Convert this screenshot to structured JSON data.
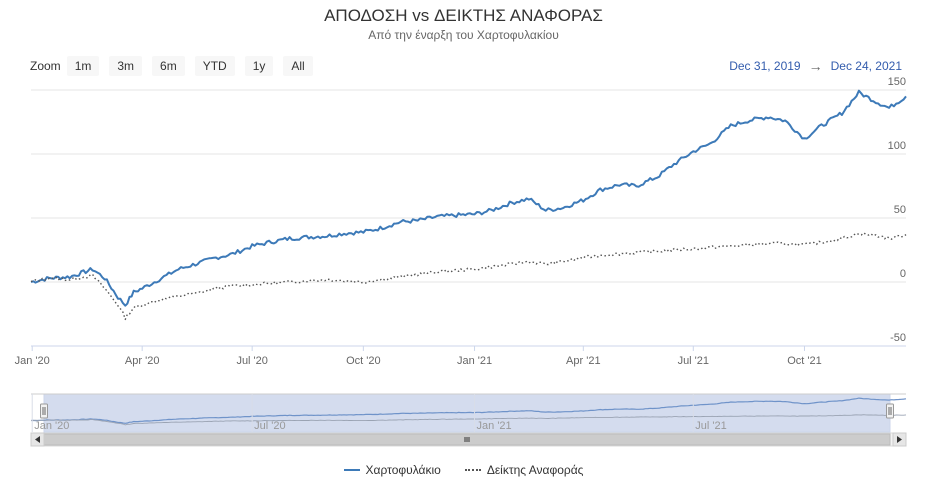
{
  "title": "ΑΠΟΔΟΣΗ vs ΔΕΙΚΤΗΣ ΑΝΑΦΟΡΑΣ",
  "subtitle": "Από την έναρξη του Χαρτοφυλακίου",
  "zoom": {
    "label": "Zoom",
    "buttons": [
      "1m",
      "3m",
      "6m",
      "YTD",
      "1y",
      "All"
    ]
  },
  "range": {
    "from": "Dec 31, 2019",
    "to": "Dec 24, 2021"
  },
  "colors": {
    "portfolio": "#3d7ab8",
    "benchmark": "#555555",
    "navigator_fill": "#ccd6eb",
    "range_text": "#335cad"
  },
  "chart_data": {
    "type": "line",
    "x_range": [
      "2019-12-31",
      "2021-12-24"
    ],
    "x_tick_labels": [
      "Jan '20",
      "Apr '20",
      "Jul '20",
      "Oct '20",
      "Jan '21",
      "Apr '21",
      "Jul '21",
      "Oct '21"
    ],
    "navigator_tick_labels": [
      "Jan '20",
      "Jul '20",
      "Jan '21",
      "Jul '21"
    ],
    "y_ticks": [
      -50,
      0,
      50,
      100,
      150
    ],
    "ylim": [
      -50,
      150
    ],
    "grid": true,
    "legend_position": "bottom",
    "series": [
      {
        "name": "Χαρτοφυλάκιο",
        "line_style": "solid",
        "points": [
          [
            "2019-12-31",
            0
          ],
          [
            "2020-01-15",
            3
          ],
          [
            "2020-02-01",
            4
          ],
          [
            "2020-02-20",
            10
          ],
          [
            "2020-03-01",
            3
          ],
          [
            "2020-03-12",
            -12
          ],
          [
            "2020-03-18",
            -18
          ],
          [
            "2020-03-25",
            -8
          ],
          [
            "2020-04-01",
            -5
          ],
          [
            "2020-04-15",
            2
          ],
          [
            "2020-05-01",
            10
          ],
          [
            "2020-05-15",
            14
          ],
          [
            "2020-06-01",
            19
          ],
          [
            "2020-06-15",
            22
          ],
          [
            "2020-07-01",
            28
          ],
          [
            "2020-07-15",
            31
          ],
          [
            "2020-08-01",
            34
          ],
          [
            "2020-08-15",
            35
          ],
          [
            "2020-09-01",
            36
          ],
          [
            "2020-09-15",
            38
          ],
          [
            "2020-10-01",
            39
          ],
          [
            "2020-10-15",
            42
          ],
          [
            "2020-11-01",
            47
          ],
          [
            "2020-11-15",
            48
          ],
          [
            "2020-12-01",
            51
          ],
          [
            "2020-12-15",
            52
          ],
          [
            "2021-01-01",
            53
          ],
          [
            "2021-01-15",
            56
          ],
          [
            "2021-02-01",
            62
          ],
          [
            "2021-02-15",
            65
          ],
          [
            "2021-03-01",
            56
          ],
          [
            "2021-03-15",
            58
          ],
          [
            "2021-04-01",
            64
          ],
          [
            "2021-04-15",
            72
          ],
          [
            "2021-05-01",
            76
          ],
          [
            "2021-05-15",
            75
          ],
          [
            "2021-06-01",
            82
          ],
          [
            "2021-06-15",
            92
          ],
          [
            "2021-07-01",
            102
          ],
          [
            "2021-07-15",
            108
          ],
          [
            "2021-08-01",
            122
          ],
          [
            "2021-08-15",
            126
          ],
          [
            "2021-09-01",
            129
          ],
          [
            "2021-09-15",
            126
          ],
          [
            "2021-10-01",
            112
          ],
          [
            "2021-10-15",
            122
          ],
          [
            "2021-11-01",
            132
          ],
          [
            "2021-11-15",
            148
          ],
          [
            "2021-12-01",
            140
          ],
          [
            "2021-12-10",
            136
          ],
          [
            "2021-12-24",
            145
          ]
        ]
      },
      {
        "name": "Δείκτης Αναφοράς",
        "line_style": "dotted",
        "points": [
          [
            "2019-12-31",
            0
          ],
          [
            "2020-01-15",
            3
          ],
          [
            "2020-02-01",
            2
          ],
          [
            "2020-02-20",
            5
          ],
          [
            "2020-03-01",
            -5
          ],
          [
            "2020-03-12",
            -18
          ],
          [
            "2020-03-18",
            -28
          ],
          [
            "2020-03-25",
            -20
          ],
          [
            "2020-04-01",
            -18
          ],
          [
            "2020-04-15",
            -14
          ],
          [
            "2020-05-01",
            -11
          ],
          [
            "2020-05-15",
            -9
          ],
          [
            "2020-06-01",
            -5
          ],
          [
            "2020-06-15",
            -3
          ],
          [
            "2020-07-01",
            -2
          ],
          [
            "2020-07-15",
            -1
          ],
          [
            "2020-08-01",
            0
          ],
          [
            "2020-08-15",
            1
          ],
          [
            "2020-09-01",
            2
          ],
          [
            "2020-09-15",
            1
          ],
          [
            "2020-10-01",
            0
          ],
          [
            "2020-10-15",
            2
          ],
          [
            "2020-11-01",
            4
          ],
          [
            "2020-11-15",
            6
          ],
          [
            "2020-12-01",
            8
          ],
          [
            "2020-12-15",
            9
          ],
          [
            "2021-01-01",
            10
          ],
          [
            "2021-01-15",
            12
          ],
          [
            "2021-02-01",
            14
          ],
          [
            "2021-02-15",
            16
          ],
          [
            "2021-03-01",
            14
          ],
          [
            "2021-03-15",
            16
          ],
          [
            "2021-04-01",
            19
          ],
          [
            "2021-04-15",
            21
          ],
          [
            "2021-05-01",
            22
          ],
          [
            "2021-05-15",
            23
          ],
          [
            "2021-06-01",
            24
          ],
          [
            "2021-06-15",
            25
          ],
          [
            "2021-07-01",
            26
          ],
          [
            "2021-07-15",
            27
          ],
          [
            "2021-08-01",
            28
          ],
          [
            "2021-08-15",
            29
          ],
          [
            "2021-09-01",
            30
          ],
          [
            "2021-09-15",
            30
          ],
          [
            "2021-10-01",
            29
          ],
          [
            "2021-10-15",
            31
          ],
          [
            "2021-11-01",
            34
          ],
          [
            "2021-11-15",
            38
          ],
          [
            "2021-12-01",
            36
          ],
          [
            "2021-12-10",
            34
          ],
          [
            "2021-12-24",
            37
          ]
        ]
      }
    ]
  }
}
